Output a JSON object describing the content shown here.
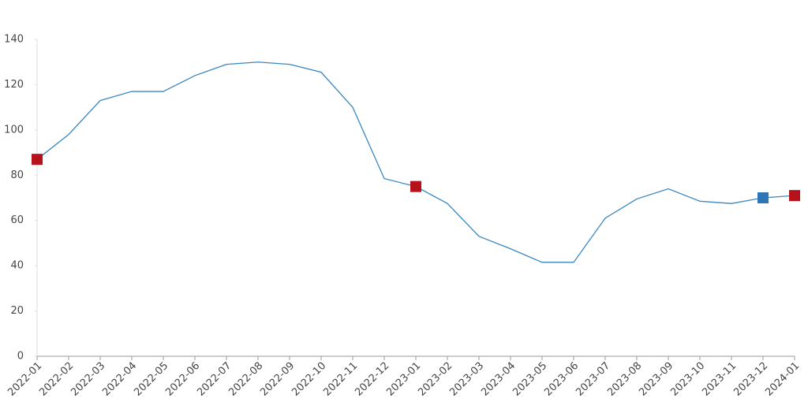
{
  "chart_data": {
    "type": "line",
    "x": [
      "2022-01",
      "2022-02",
      "2022-03",
      "2022-04",
      "2022-05",
      "2022-06",
      "2022-07",
      "2022-08",
      "2022-09",
      "2022-10",
      "2022-11",
      "2022-12",
      "2023-01",
      "2023-02",
      "2023-03",
      "2023-04",
      "2023-05",
      "2023-06",
      "2023-07",
      "2023-08",
      "2023-09",
      "2023-10",
      "2023-11",
      "2023-12",
      "2024-01"
    ],
    "values": [
      87,
      98,
      113,
      117,
      117,
      124,
      129,
      130,
      129,
      125.5,
      110,
      78.5,
      75,
      67.5,
      53,
      47.5,
      41.5,
      41.5,
      61,
      69.5,
      74,
      68.5,
      67.5,
      70,
      71
    ],
    "color": "#3a87c0",
    "marker_colors": [
      "#b5121b",
      null,
      null,
      null,
      null,
      null,
      null,
      null,
      null,
      null,
      null,
      null,
      "#b5121b",
      null,
      null,
      null,
      null,
      null,
      null,
      null,
      null,
      null,
      null,
      "#2e75b6",
      "#b5121b"
    ],
    "ylim": [
      0,
      140
    ],
    "yticks": [
      0,
      20,
      40,
      60,
      80,
      100,
      120,
      140
    ]
  }
}
